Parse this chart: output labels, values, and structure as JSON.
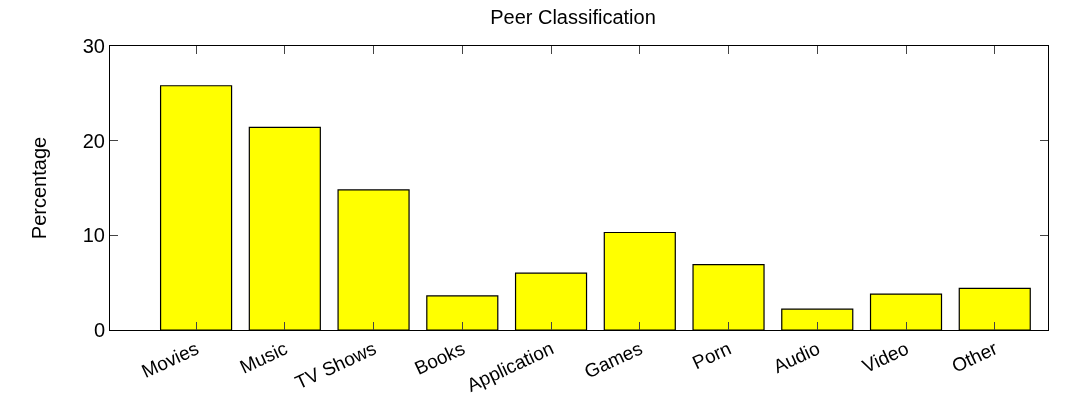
{
  "chart_data": {
    "type": "bar",
    "title": "Peer Classification",
    "ylabel": "Percentage",
    "categories": [
      "Movies",
      "Music",
      "TV Shows",
      "Books",
      "Application",
      "Games",
      "Porn",
      "Audio",
      "Video",
      "Other"
    ],
    "values": [
      25.8,
      21.4,
      14.8,
      3.6,
      6.0,
      10.3,
      6.9,
      2.2,
      3.8,
      4.4
    ],
    "color": "#ffff00",
    "ylim": [
      0,
      30
    ],
    "yticks": [
      0,
      10,
      20,
      30
    ],
    "grid": false,
    "legend": false
  }
}
